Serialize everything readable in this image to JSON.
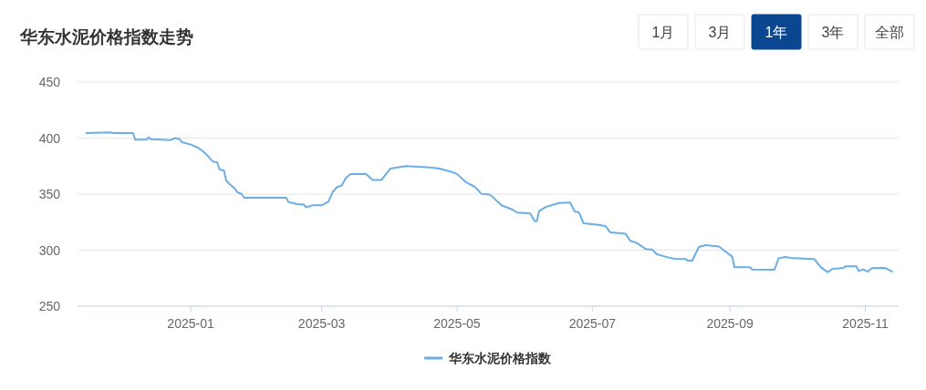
{
  "chart_data": {
    "type": "line",
    "title": "华东水泥价格指数走势",
    "annotations": [
      "1月",
      "3月",
      "1年",
      "3年",
      "全部"
    ],
    "x": [
      "2024-11-15",
      "2024-11-26",
      "2024-11-27",
      "2024-12-06",
      "2024-12-07",
      "2024-12-12",
      "2024-12-13",
      "2024-12-14",
      "2024-12-23",
      "2024-12-25",
      "2024-12-27",
      "2024-12-28",
      "2025-01-01",
      "2025-01-04",
      "2025-01-06",
      "2025-01-08",
      "2025-01-11",
      "2025-01-13",
      "2025-01-14",
      "2025-01-16",
      "2025-01-17",
      "2025-01-18",
      "2025-01-21",
      "2025-01-22",
      "2025-01-24",
      "2025-01-25",
      "2025-02-13",
      "2025-02-14",
      "2025-02-18",
      "2025-02-21",
      "2025-02-22",
      "2025-02-25",
      "2025-03-01",
      "2025-03-04",
      "2025-03-06",
      "2025-03-08",
      "2025-03-10",
      "2025-03-12",
      "2025-03-14",
      "2025-03-21",
      "2025-03-24",
      "2025-03-28",
      "2025-04-01",
      "2025-04-08",
      "2025-04-19",
      "2025-04-23",
      "2025-04-28",
      "2025-05-01",
      "2025-05-05",
      "2025-05-09",
      "2025-05-12",
      "2025-05-16",
      "2025-05-21",
      "2025-05-26",
      "2025-05-28",
      "2025-06-03",
      "2025-06-05",
      "2025-06-06",
      "2025-06-07",
      "2025-06-10",
      "2025-06-16",
      "2025-06-21",
      "2025-06-23",
      "2025-06-25",
      "2025-06-27",
      "2025-07-04",
      "2025-07-07",
      "2025-07-09",
      "2025-07-16",
      "2025-07-18",
      "2025-07-21",
      "2025-07-25",
      "2025-07-28",
      "2025-07-30",
      "2025-08-04",
      "2025-08-07",
      "2025-08-12",
      "2025-08-13",
      "2025-08-15",
      "2025-08-18",
      "2025-08-21",
      "2025-08-27",
      "2025-08-30",
      "2025-09-02",
      "2025-09-03",
      "2025-09-10",
      "2025-09-11",
      "2025-09-21",
      "2025-09-23",
      "2025-09-26",
      "2025-09-29",
      "2025-10-09",
      "2025-10-12",
      "2025-10-15",
      "2025-10-17",
      "2025-10-22",
      "2025-10-23",
      "2025-10-28",
      "2025-10-29",
      "2025-10-31",
      "2025-11-02",
      "2025-11-04",
      "2025-11-10",
      "2025-11-13"
    ],
    "series": [
      {
        "name": "华东水泥价格指数",
        "color": "#6aaee8",
        "values": [
          404.5,
          405,
          404.5,
          404.5,
          398.5,
          398.5,
          400.7,
          399,
          398.2,
          400,
          399,
          396.3,
          394.2,
          391.7,
          389,
          385.5,
          379,
          378.3,
          372,
          371,
          362,
          360,
          354.6,
          351.6,
          350,
          346.7,
          346.7,
          343,
          341,
          340.7,
          338.1,
          340,
          340,
          343.2,
          352,
          356.3,
          357.5,
          364.6,
          367.9,
          367.9,
          362.7,
          362.7,
          372.8,
          375,
          373.8,
          372.8,
          370.1,
          368,
          360.6,
          356.5,
          350.3,
          349.3,
          340,
          336.2,
          333.5,
          332.7,
          325.9,
          325.9,
          334.9,
          338.5,
          342.1,
          342.4,
          334.6,
          333.5,
          324,
          322.6,
          321.3,
          315.9,
          314.6,
          308.3,
          306.4,
          301,
          300.5,
          296.3,
          293.6,
          292.3,
          292,
          290.7,
          290.7,
          302.8,
          304.5,
          303.3,
          298.8,
          294.2,
          284.7,
          284.7,
          282.8,
          282.5,
          292.8,
          293.9,
          292.8,
          292,
          284.7,
          280.4,
          283.1,
          284.1,
          285.5,
          285.5,
          281.4,
          282.8,
          280.7,
          283.9,
          284.1,
          280.9
        ]
      }
    ],
    "xlim": [
      "2024-11-11",
      "2025-11-16"
    ],
    "xticks": [
      "2025-01",
      "2025-03",
      "2025-05",
      "2025-07",
      "2025-09",
      "2025-11"
    ],
    "ylim": [
      250,
      450
    ],
    "yticks": [
      250,
      300,
      350,
      400,
      450
    ],
    "grid": "y",
    "legend": "bottom",
    "marker": "none",
    "line_style": "solid"
  }
}
